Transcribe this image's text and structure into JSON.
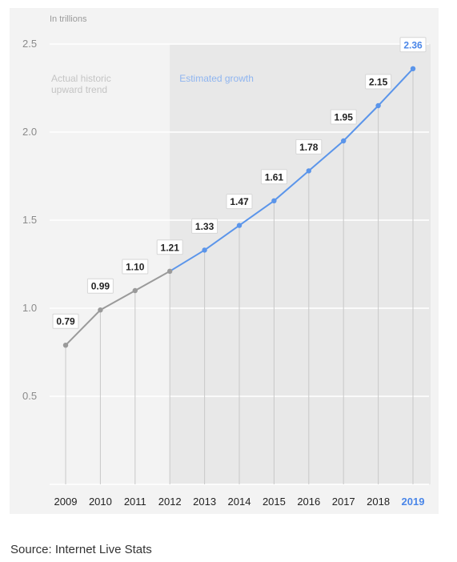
{
  "chart_data": {
    "type": "line",
    "unit_label": "In trillions",
    "x": [
      "2009",
      "2010",
      "2011",
      "2012",
      "2013",
      "2014",
      "2015",
      "2016",
      "2017",
      "2018",
      "2019"
    ],
    "values": [
      0.79,
      0.99,
      1.1,
      1.21,
      1.33,
      1.47,
      1.61,
      1.78,
      1.95,
      2.15,
      2.36
    ],
    "value_labels": [
      "0.79",
      "0.99",
      "1.10",
      "1.21",
      "1.33",
      "1.47",
      "1.61",
      "1.78",
      "1.95",
      "2.15",
      "2.36"
    ],
    "yticks": [
      "0.5",
      "1.0",
      "1.5",
      "2.0",
      "2.5"
    ],
    "ytick_values": [
      0.5,
      1.0,
      1.5,
      2.0,
      2.5
    ],
    "ylim": [
      0.0,
      2.5
    ],
    "grid": true,
    "segments": {
      "historic": {
        "label": "Actual historic upward trend",
        "label_lines": [
          "Actual historic",
          "upward trend"
        ],
        "from": "2009",
        "to": "2012",
        "color": "#9a9a9a"
      },
      "estimated": {
        "label": "Estimated growth",
        "from": "2012",
        "to": "2019",
        "color": "#5b95ea"
      }
    },
    "highlight": {
      "x": "2019",
      "color": "#4a86e8"
    }
  },
  "colors": {
    "panel_background": "#f3f3f3",
    "estimated_background": "#e8e8e8",
    "gridline": "#ffffff",
    "axis_text": "#8a8a8a",
    "label_text": "#222222"
  },
  "source": "Source: Internet Live Stats"
}
